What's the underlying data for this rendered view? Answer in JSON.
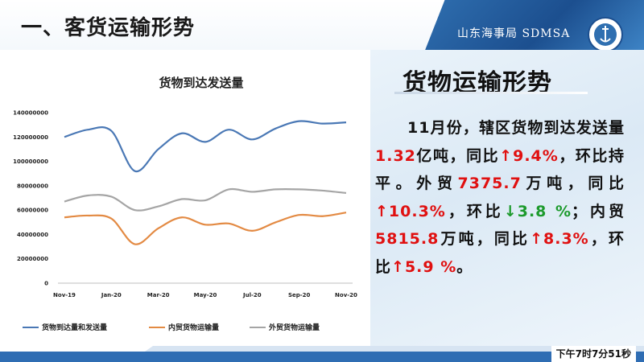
{
  "header": {
    "section_title": "一、客货运输形势",
    "brand_text": "山东海事局 SDMSA",
    "emblem_text": "CHINA MSA"
  },
  "panel": {
    "title": "货物运输形势",
    "summary": {
      "p1": "11月份，辖区货物到达发送量",
      "total": "1.32",
      "p2": "亿吨，同比",
      "total_yoy": "9.4%",
      "p3": "，环比持平。外贸",
      "foreign": "7375.7",
      "p4": "万吨，同比",
      "foreign_yoy": "10.3%",
      "p5": "，环比",
      "foreign_mom": "3.8 %",
      "p6": "；内贸",
      "domestic": "5815.8",
      "p7": "万吨，同比",
      "domestic_yoy": "8.3%",
      "p8": "，环比",
      "domestic_mom": "5.9 %",
      "p9": "。"
    }
  },
  "footer": {
    "time": "下午7时7分51秒"
  },
  "colors": {
    "series_total": "#4a78b5",
    "series_domestic": "#e38a43",
    "series_foreign": "#a5a5a5",
    "up_arrow": "#e01010",
    "down_arrow": "#1c9a2c"
  },
  "chart_data": {
    "type": "line",
    "title": "货物到达发送量",
    "x": [
      "Nov-19",
      "Dec-19",
      "Jan-20",
      "Feb-20",
      "Mar-20",
      "Apr-20",
      "May-20",
      "Jun-20",
      "Jul-20",
      "Aug-20",
      "Sep-20",
      "Oct-20",
      "Nov-20"
    ],
    "x_ticks": [
      "Nov-19",
      "Jan-20",
      "Mar-20",
      "May-20",
      "Jul-20",
      "Sep-20",
      "Nov-20"
    ],
    "y_ticks": [
      "0",
      "20000000",
      "40000000",
      "60000000",
      "80000000",
      "100000000",
      "120000000",
      "140000000"
    ],
    "ylim": [
      0,
      140000000
    ],
    "grid": false,
    "legend_position": "bottom",
    "series": [
      {
        "name": "货物到达量和发送量",
        "values": [
          120000000,
          126000000,
          125000000,
          92000000,
          110000000,
          123000000,
          116000000,
          126000000,
          118000000,
          127000000,
          133000000,
          131000000,
          132000000
        ]
      },
      {
        "name": "内贸货物运输量",
        "values": [
          54000000,
          55500000,
          53000000,
          32000000,
          45000000,
          54000000,
          48000000,
          49000000,
          43000000,
          50000000,
          56000000,
          55000000,
          58000000
        ]
      },
      {
        "name": "外贸货物运输量",
        "values": [
          67000000,
          72000000,
          71000000,
          60000000,
          63000000,
          69000000,
          68000000,
          77000000,
          75000000,
          77000000,
          77000000,
          76000000,
          74000000
        ]
      }
    ]
  }
}
